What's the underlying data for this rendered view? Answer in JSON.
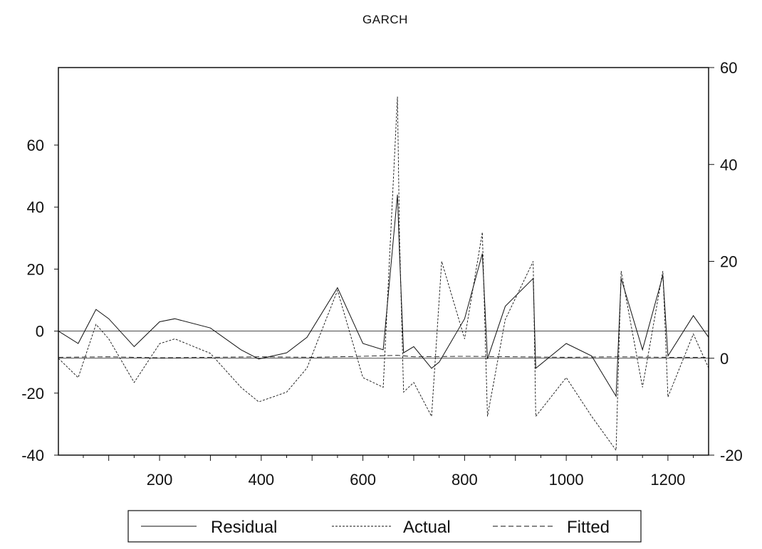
{
  "chart_data": {
    "type": "line",
    "title": "GARCH",
    "x_axis": {
      "range": [
        1,
        1280
      ],
      "ticks": [
        200,
        400,
        600,
        800,
        1000,
        1200
      ],
      "tick_labels": [
        "200",
        "400",
        "600",
        "800",
        "1000",
        "1200"
      ]
    },
    "left_axis": {
      "range": [
        -40,
        85
      ],
      "ticks": [
        -40,
        -20,
        0,
        20,
        40,
        60
      ],
      "tick_labels": [
        "-40",
        "-20",
        "0",
        "20",
        "40",
        "60"
      ]
    },
    "right_axis": {
      "range": [
        -20,
        60
      ],
      "ticks": [
        -20,
        0,
        20,
        40,
        60
      ],
      "tick_labels": [
        "-20",
        "0",
        "20",
        "40",
        "60"
      ]
    },
    "legend_position": "bottom-center",
    "series": [
      {
        "name": "Residual",
        "axis": "left",
        "style": "solid",
        "color": "#111111",
        "points": [
          [
            1,
            0
          ],
          [
            40,
            -4
          ],
          [
            75,
            7
          ],
          [
            100,
            4
          ],
          [
            150,
            -5
          ],
          [
            200,
            3
          ],
          [
            230,
            4
          ],
          [
            300,
            1
          ],
          [
            360,
            -6
          ],
          [
            395,
            -9
          ],
          [
            450,
            -7
          ],
          [
            490,
            -2
          ],
          [
            550,
            14
          ],
          [
            600,
            -4
          ],
          [
            640,
            -6
          ],
          [
            668,
            44
          ],
          [
            672,
            25
          ],
          [
            680,
            -7
          ],
          [
            700,
            -5
          ],
          [
            735,
            -12
          ],
          [
            750,
            -10
          ],
          [
            800,
            4
          ],
          [
            835,
            25
          ],
          [
            845,
            -9
          ],
          [
            880,
            8
          ],
          [
            935,
            17
          ],
          [
            940,
            -12
          ],
          [
            1000,
            -4
          ],
          [
            1050,
            -8
          ],
          [
            1098,
            -21
          ],
          [
            1108,
            17
          ],
          [
            1150,
            -6
          ],
          [
            1190,
            18
          ],
          [
            1200,
            -8
          ],
          [
            1250,
            5
          ],
          [
            1280,
            -2
          ]
        ]
      },
      {
        "name": "Actual",
        "axis": "right",
        "style": "short-dash",
        "color": "#111111",
        "points": [
          [
            1,
            0
          ],
          [
            40,
            -4
          ],
          [
            75,
            7
          ],
          [
            100,
            4
          ],
          [
            150,
            -5
          ],
          [
            200,
            3
          ],
          [
            230,
            4
          ],
          [
            300,
            1
          ],
          [
            360,
            -6
          ],
          [
            395,
            -9
          ],
          [
            450,
            -7
          ],
          [
            490,
            -2
          ],
          [
            550,
            14
          ],
          [
            600,
            -4
          ],
          [
            640,
            -6
          ],
          [
            668,
            54
          ],
          [
            672,
            25
          ],
          [
            680,
            -7
          ],
          [
            700,
            -5
          ],
          [
            735,
            -12
          ],
          [
            755,
            20
          ],
          [
            800,
            4
          ],
          [
            835,
            26
          ],
          [
            845,
            -12
          ],
          [
            880,
            8
          ],
          [
            935,
            20
          ],
          [
            940,
            -12
          ],
          [
            1000,
            -4
          ],
          [
            1050,
            -12
          ],
          [
            1098,
            -19
          ],
          [
            1108,
            18
          ],
          [
            1150,
            -6
          ],
          [
            1190,
            18
          ],
          [
            1200,
            -8
          ],
          [
            1250,
            5
          ],
          [
            1280,
            -2
          ]
        ]
      },
      {
        "name": "Fitted",
        "axis": "right",
        "style": "long-dash",
        "color": "#111111",
        "points": [
          [
            1,
            0.2
          ],
          [
            100,
            0.3
          ],
          [
            200,
            0.1
          ],
          [
            300,
            0.2
          ],
          [
            400,
            0.3
          ],
          [
            500,
            0.2
          ],
          [
            600,
            0.4
          ],
          [
            668,
            0.6
          ],
          [
            700,
            0.3
          ],
          [
            800,
            0.4
          ],
          [
            900,
            0.3
          ],
          [
            1000,
            0.2
          ],
          [
            1100,
            0.3
          ],
          [
            1200,
            0.2
          ],
          [
            1280,
            0.2
          ]
        ]
      }
    ]
  }
}
